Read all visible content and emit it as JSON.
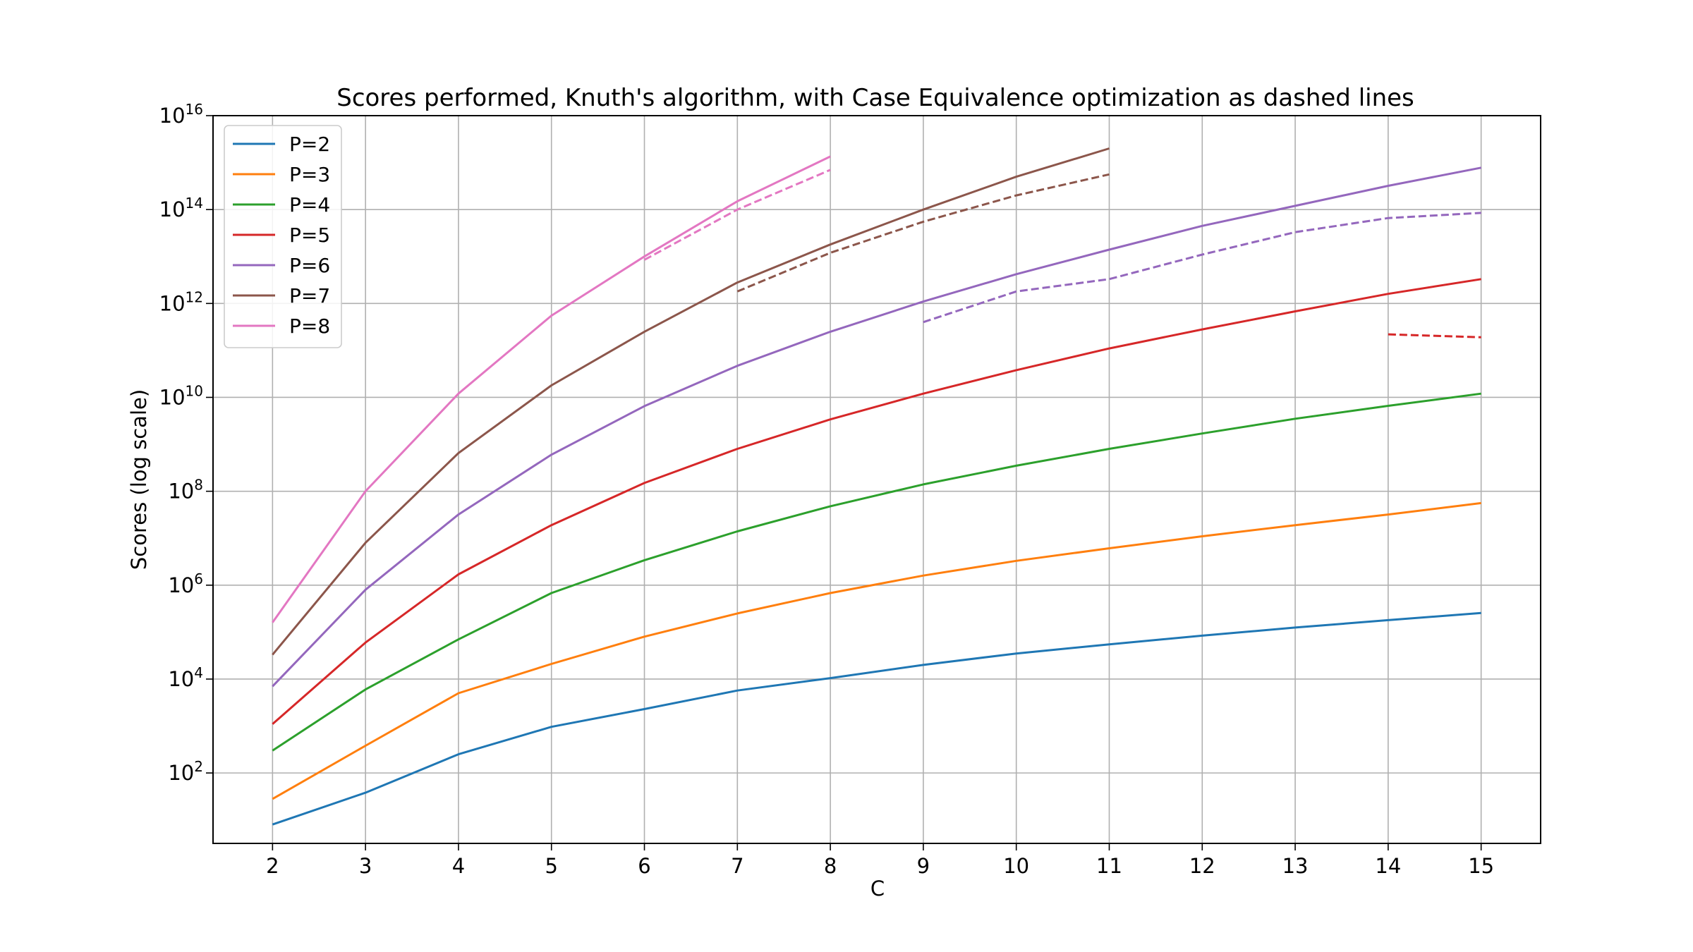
{
  "chart_data": {
    "type": "line",
    "title": "Scores performed, Knuth's algorithm, with Case Equivalence optimization as dashed lines",
    "xlabel": "C",
    "ylabel": "Scores (log scale)",
    "x_ticks": [
      "2",
      "3",
      "4",
      "5",
      "6",
      "7",
      "8",
      "9",
      "10",
      "11",
      "12",
      "13",
      "14",
      "15"
    ],
    "y_ticks": [
      {
        "base": "10",
        "exp": "2",
        "value": 2
      },
      {
        "base": "10",
        "exp": "4",
        "value": 4
      },
      {
        "base": "10",
        "exp": "6",
        "value": 6
      },
      {
        "base": "10",
        "exp": "8",
        "value": 8
      },
      {
        "base": "10",
        "exp": "10",
        "value": 10
      },
      {
        "base": "10",
        "exp": "12",
        "value": 12
      },
      {
        "base": "10",
        "exp": "14",
        "value": 14
      },
      {
        "base": "10",
        "exp": "16",
        "value": 16
      }
    ],
    "xlim": [
      1.36,
      15.64
    ],
    "ylim_log10": [
      0.5,
      16
    ],
    "y_scale": "log",
    "grid": true,
    "legend_position": "upper-left",
    "series": [
      {
        "name": "P=2",
        "color": "#1f77b4",
        "style": "solid",
        "x": [
          2,
          3,
          4,
          5,
          6,
          7,
          8,
          9,
          10,
          11,
          12,
          13,
          14,
          15
        ],
        "y": [
          8,
          38,
          250,
          960,
          2300,
          5700,
          10500,
          20000,
          35000,
          55000,
          84000,
          125000,
          180000,
          255000
        ]
      },
      {
        "name": "P=3",
        "color": "#ff7f0e",
        "style": "solid",
        "x": [
          2,
          3,
          4,
          5,
          6,
          7,
          8,
          9,
          10,
          11,
          12,
          13,
          14,
          15
        ],
        "y": [
          28,
          380,
          5000,
          21000,
          80000,
          250000,
          680000,
          1600000,
          3300000,
          6100000,
          11000000,
          19000000,
          32000000,
          56000000
        ]
      },
      {
        "name": "P=4",
        "color": "#2ca02c",
        "style": "solid",
        "x": [
          2,
          3,
          4,
          5,
          6,
          7,
          8,
          9,
          10,
          11,
          12,
          13,
          14,
          15
        ],
        "y": [
          300,
          6000,
          70000,
          680000,
          3400000,
          14000000,
          48000000,
          140000000,
          350000000,
          800000000,
          1700000000,
          3500000000,
          6600000000,
          12000000000
        ]
      },
      {
        "name": "P=5",
        "color": "#d62728",
        "style": "solid",
        "x": [
          2,
          3,
          4,
          5,
          6,
          7,
          8,
          9,
          10,
          11,
          12,
          13,
          14,
          15
        ],
        "y": [
          1100,
          60000,
          1700000,
          19000000,
          150000000,
          800000000,
          3400000000,
          12000000000,
          38000000000,
          110000000000,
          280000000000,
          680000000000,
          1600000000000,
          3300000000000
        ]
      },
      {
        "name": "P=6",
        "color": "#9467bd",
        "style": "solid",
        "x": [
          2,
          3,
          4,
          5,
          6,
          7,
          8,
          9,
          10,
          11,
          12,
          13,
          14,
          15
        ],
        "y": [
          7000,
          800000,
          32000000,
          600000000,
          6500000000,
          47000000000,
          250000000000,
          1100000000000,
          4200000000000,
          14000000000000,
          45000000000000,
          120000000000000,
          320000000000000,
          780000000000000
        ]
      },
      {
        "name": "P=7",
        "color": "#8c564b",
        "style": "solid",
        "x": [
          2,
          3,
          4,
          5,
          6,
          7,
          8,
          9,
          10,
          11
        ],
        "y": [
          33000,
          8000000,
          650000000,
          18000000000,
          250000000000,
          2800000000000,
          18000000000000,
          100000000000000,
          500000000000000,
          2000000000000000
        ]
      },
      {
        "name": "P=8",
        "color": "#e377c2",
        "style": "solid",
        "x": [
          2,
          3,
          4,
          5,
          6,
          7,
          8
        ],
        "y": [
          160000,
          100000000,
          12000000000,
          550000000000,
          10000000000000,
          150000000000000,
          1350000000000000
        ]
      },
      {
        "name": "",
        "color": "#d62728",
        "style": "dashed",
        "x": [
          14,
          15
        ],
        "y": [
          220000000000,
          190000000000
        ]
      },
      {
        "name": "",
        "color": "#9467bd",
        "style": "dashed",
        "x": [
          9,
          10,
          11,
          12,
          13,
          14,
          15
        ],
        "y": [
          400000000000,
          1800000000000,
          3300000000000,
          11000000000000,
          33000000000000,
          66000000000000,
          85000000000000
        ]
      },
      {
        "name": "",
        "color": "#8c564b",
        "style": "dashed",
        "x": [
          7,
          8,
          9,
          10,
          11
        ],
        "y": [
          1800000000000,
          12000000000000,
          55000000000000,
          200000000000000,
          560000000000000
        ]
      },
      {
        "name": "",
        "color": "#e377c2",
        "style": "dashed",
        "x": [
          6,
          7,
          8
        ],
        "y": [
          8500000000000,
          100000000000000,
          700000000000000
        ]
      }
    ]
  }
}
